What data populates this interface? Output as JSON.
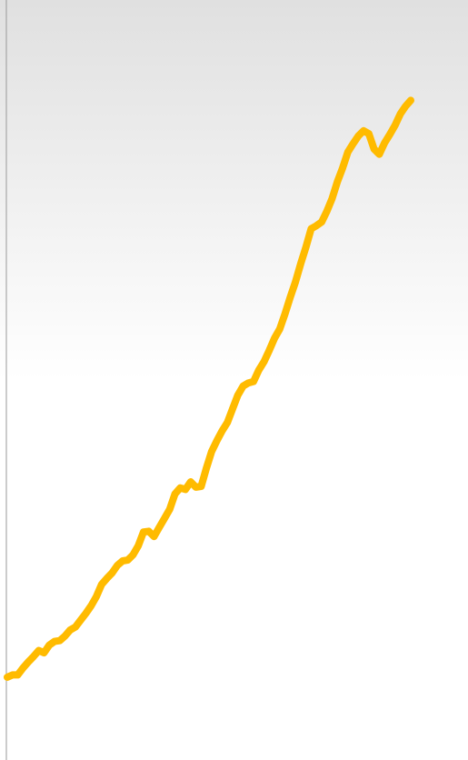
{
  "chart_data": {
    "type": "line",
    "color": "#ffbb00",
    "ylim": [
      0,
      100
    ],
    "values": [
      10.9,
      11.2,
      11.2,
      12.1,
      12.9,
      13.6,
      14.4,
      14.1,
      15.1,
      15.6,
      15.7,
      16.3,
      17.1,
      17.5,
      18.4,
      19.3,
      20.3,
      21.5,
      23.1,
      23.9,
      24.6,
      25.6,
      26.2,
      26.3,
      27.0,
      28.2,
      30.0,
      30.1,
      29.4,
      30.6,
      31.8,
      33.0,
      35.0,
      35.8,
      35.6,
      36.6,
      35.9,
      36.0,
      38.4,
      40.6,
      42.0,
      43.3,
      44.4,
      46.2,
      48.0,
      49.2,
      49.6,
      49.8,
      51.3,
      52.4,
      53.9,
      55.5,
      56.7,
      58.7,
      60.9,
      62.9,
      65.3,
      67.5,
      69.9,
      70.3,
      70.8,
      72.2,
      73.9,
      76.1,
      77.9,
      80.0,
      81.1,
      82.1,
      82.8,
      82.4,
      80.4,
      79.7,
      81.2,
      82.3,
      83.5,
      85.0,
      86.0,
      86.8
    ]
  }
}
